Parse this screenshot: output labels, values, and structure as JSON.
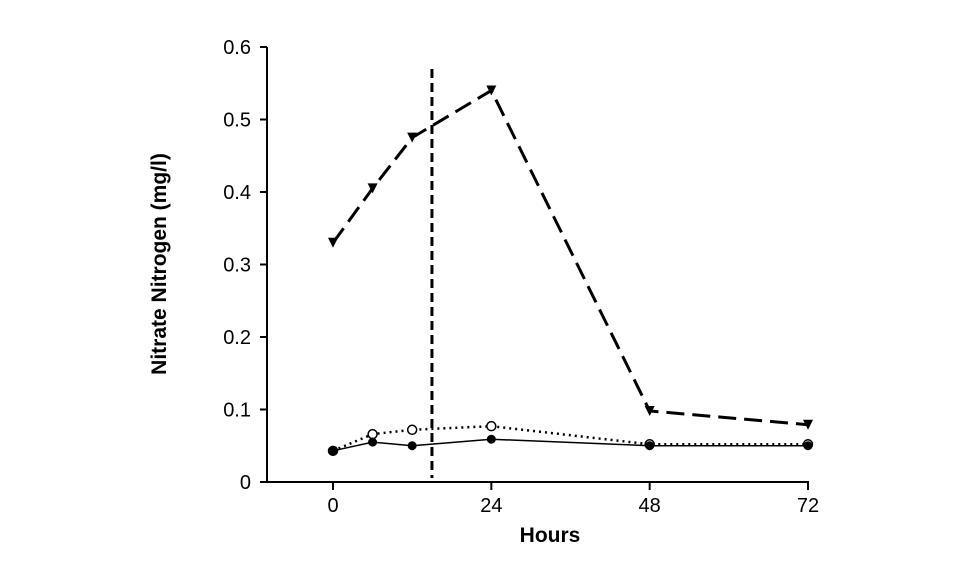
{
  "chart_data": {
    "type": "line",
    "title": "",
    "xlabel": "Hours",
    "ylabel": "Nitrate Nitrogen (mg/l)",
    "xlim": [
      -10,
      72
    ],
    "ylim": [
      0,
      0.6
    ],
    "xticks": [
      0,
      24,
      48,
      72
    ],
    "yticks": [
      0,
      0.1,
      0.2,
      0.3,
      0.4,
      0.5,
      0.6
    ],
    "ytick_labels": [
      "0",
      "0.1",
      "0.2",
      "0.3",
      "0.4",
      "0.5",
      "0.6"
    ],
    "xtick_labels": [
      "0",
      "24",
      "48",
      "72"
    ],
    "grid": false,
    "x": [
      0,
      6,
      12,
      24,
      48,
      72
    ],
    "series": [
      {
        "marker": "triangle-down-filled",
        "line": "dashed",
        "values": [
          0.33,
          0.405,
          0.475,
          0.54,
          0.098,
          0.079
        ]
      },
      {
        "marker": "circle-open",
        "line": "dotted",
        "values": [
          0.043,
          0.066,
          0.072,
          0.077,
          0.052,
          0.052
        ]
      },
      {
        "marker": "circle-filled",
        "line": "solid",
        "values": [
          0.043,
          0.055,
          0.05,
          0.059,
          0.05,
          0.05
        ]
      }
    ],
    "reference_line": {
      "orientation": "vertical",
      "x": 15,
      "style": "dashed"
    },
    "color": "#000000"
  }
}
